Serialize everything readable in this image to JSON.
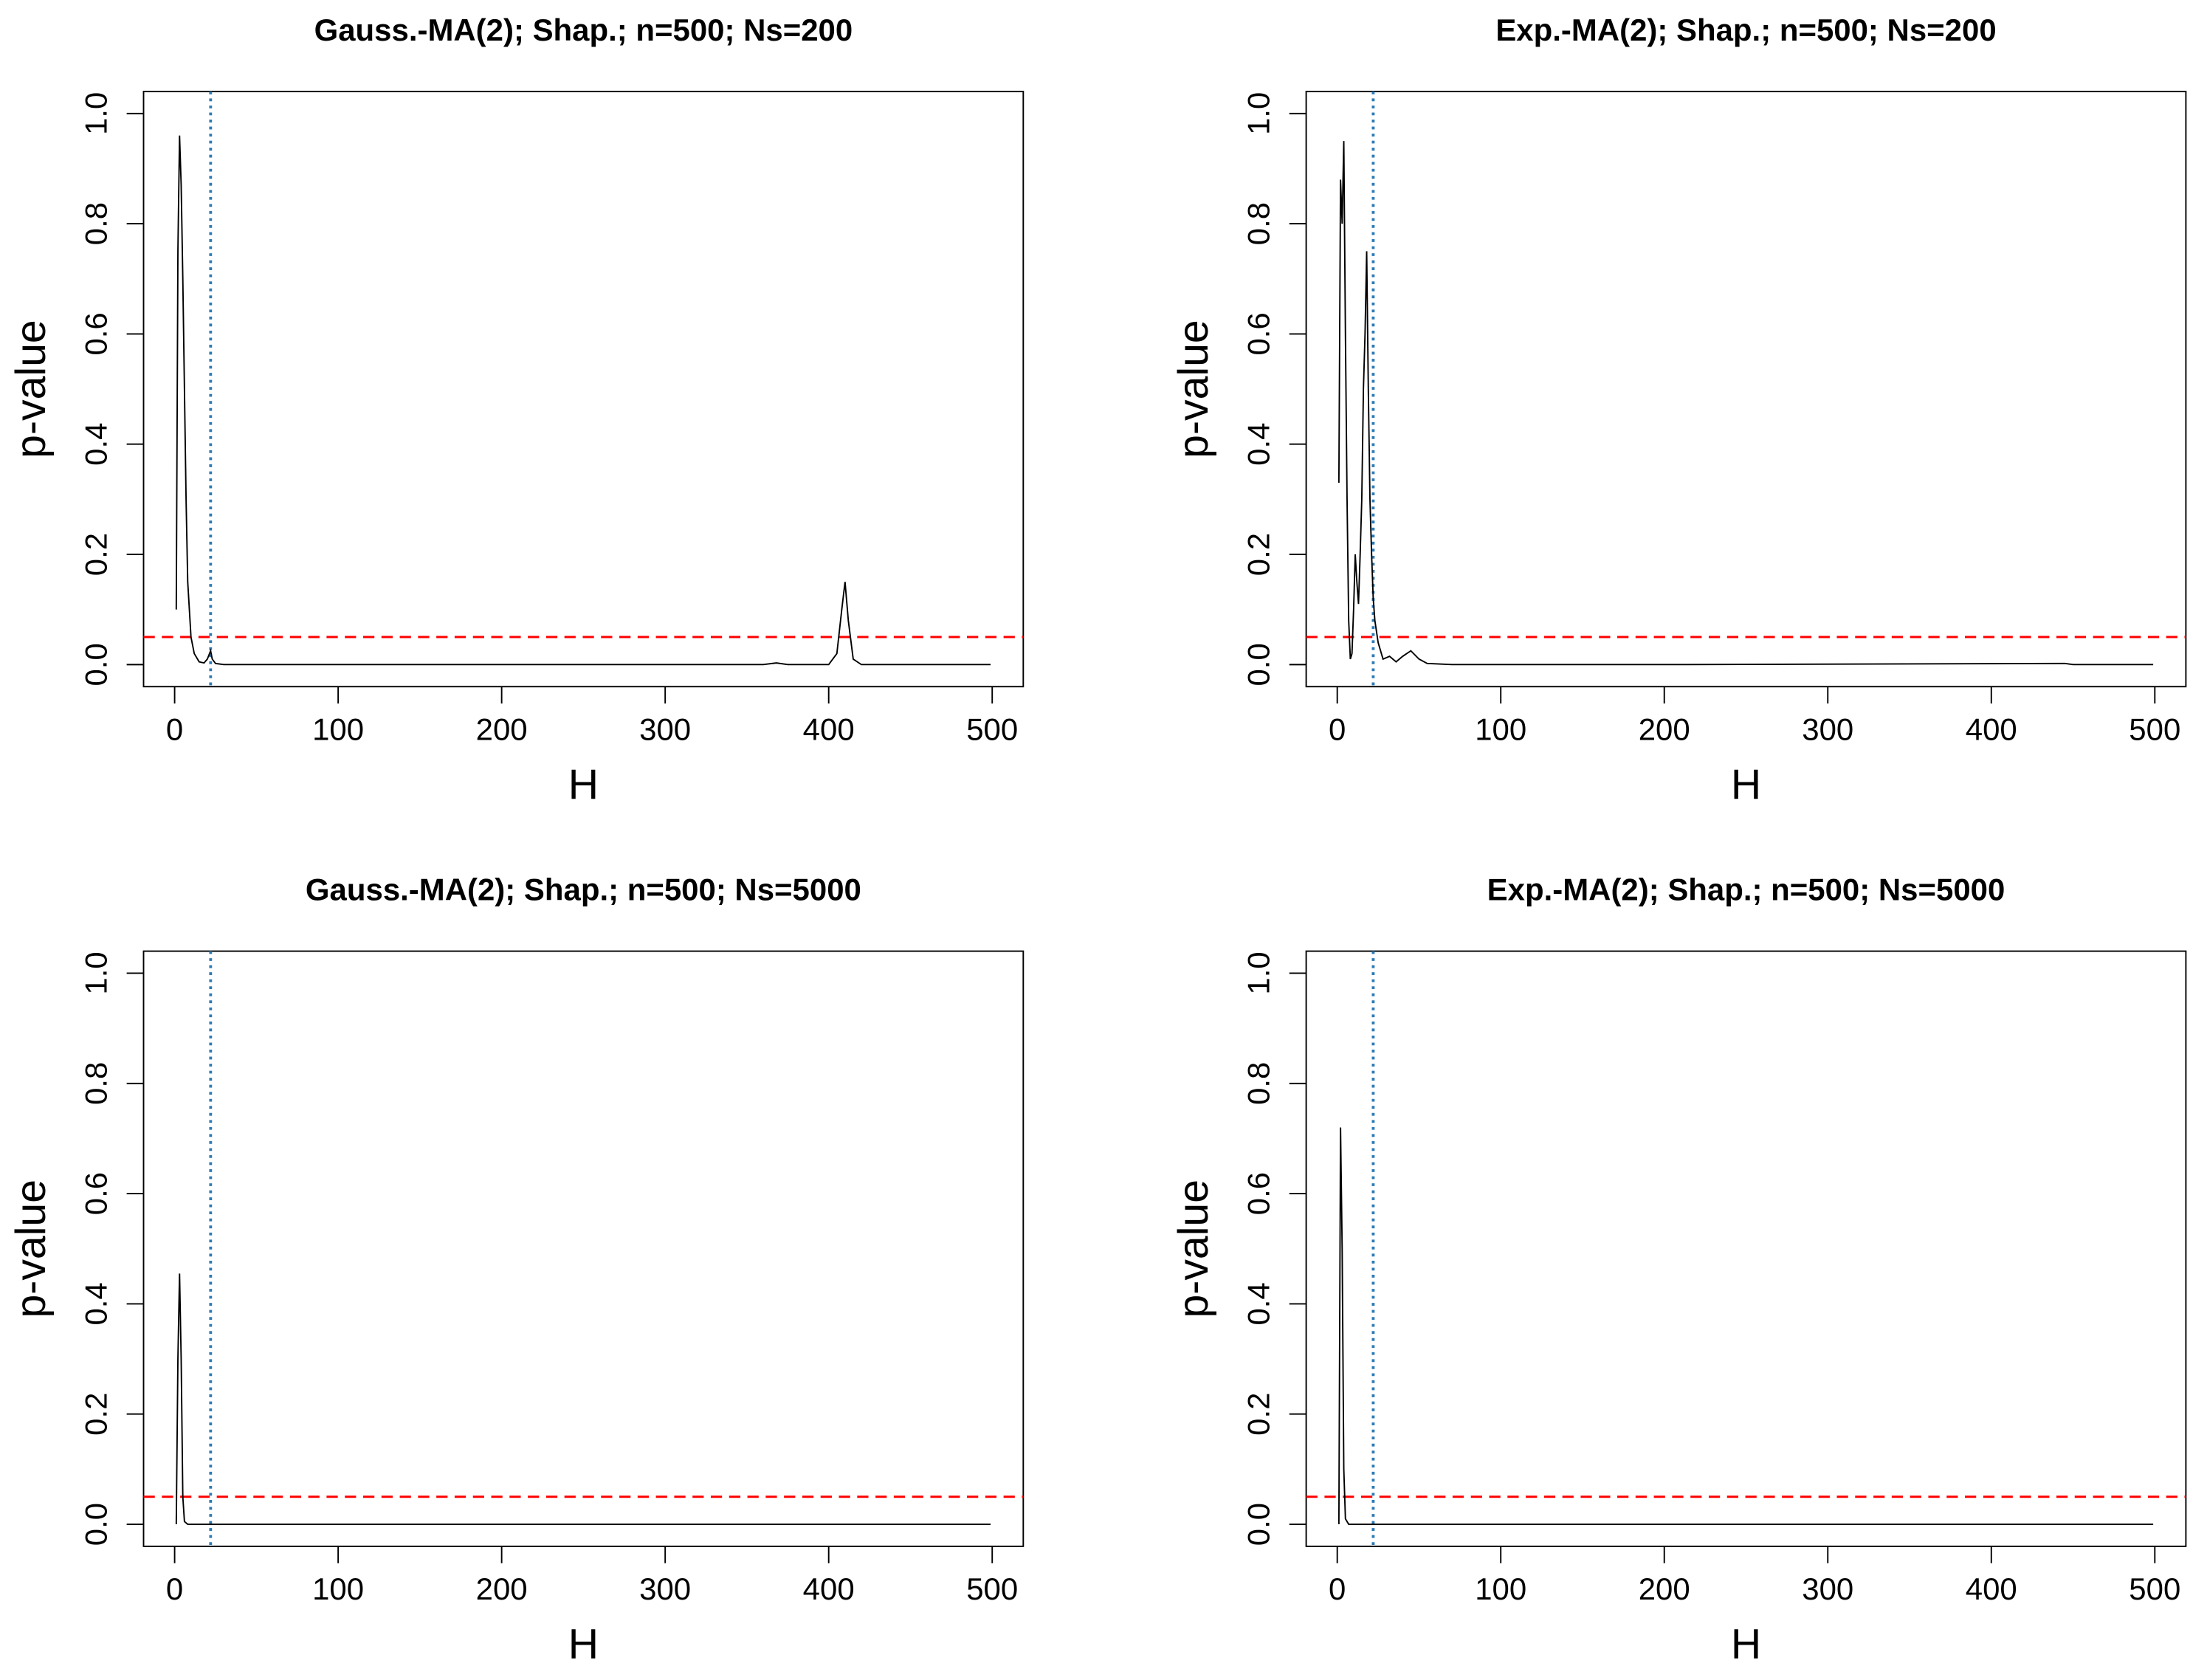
{
  "chart_data": [
    {
      "type": "line",
      "title": "Gauss.-MA(2);  Shap.;  n=500;  Ns=200",
      "xlabel": "H",
      "ylabel": "p-value",
      "x": [
        1,
        2,
        3,
        4,
        5,
        6,
        7,
        8,
        10,
        12,
        15,
        18,
        20,
        22,
        23,
        25,
        30,
        50,
        100,
        200,
        300,
        360,
        368,
        375,
        400,
        405,
        408,
        410,
        412,
        415,
        420,
        450,
        499
      ],
      "values": [
        0.1,
        0.75,
        0.96,
        0.87,
        0.7,
        0.5,
        0.3,
        0.15,
        0.05,
        0.02,
        0.005,
        0.003,
        0.01,
        0.025,
        0.01,
        0.002,
        0,
        0,
        0,
        0,
        0,
        0,
        0.003,
        0,
        0,
        0.02,
        0.1,
        0.15,
        0.08,
        0.01,
        0,
        0,
        0
      ],
      "color": "#000000",
      "hline": 0.05,
      "hline_color": "#ff0000",
      "vline": 22,
      "vline_color": "#2c7bb6",
      "xlim": [
        -19,
        519
      ],
      "ylim": [
        -0.04,
        1.04
      ],
      "xticks": [
        0,
        100,
        200,
        300,
        400,
        500
      ],
      "yticks": [
        {
          "value": 0,
          "label": "0.0"
        },
        0.2,
        0.4,
        0.6,
        0.8,
        {
          "value": 1,
          "label": "1.0"
        }
      ]
    },
    {
      "type": "line",
      "title": "Exp.-MA(2);  Shap.;  n=500;  Ns=200",
      "xlabel": "H",
      "ylabel": "p-value",
      "x": [
        1,
        2,
        3,
        4,
        5,
        6,
        7,
        8,
        9,
        10,
        11,
        12,
        13,
        14,
        15,
        16,
        17,
        18,
        19,
        20,
        21,
        22,
        23,
        25,
        28,
        32,
        36,
        40,
        45,
        50,
        55,
        70,
        200,
        445,
        450,
        499
      ],
      "values": [
        0.33,
        0.88,
        0.8,
        0.95,
        0.6,
        0.3,
        0.08,
        0.01,
        0.02,
        0.1,
        0.2,
        0.15,
        0.11,
        0.2,
        0.3,
        0.5,
        0.6,
        0.75,
        0.5,
        0.3,
        0.2,
        0.12,
        0.08,
        0.04,
        0.01,
        0.015,
        0.005,
        0.015,
        0.025,
        0.01,
        0.002,
        0,
        0,
        0.002,
        0,
        0
      ],
      "color": "#000000",
      "hline": 0.05,
      "hline_color": "#ff0000",
      "vline": 22,
      "vline_color": "#2c7bb6",
      "xlim": [
        -19,
        519
      ],
      "ylim": [
        -0.04,
        1.04
      ],
      "xticks": [
        0,
        100,
        200,
        300,
        400,
        500
      ],
      "yticks": [
        {
          "value": 0,
          "label": "0.0"
        },
        0.2,
        0.4,
        0.6,
        0.8,
        {
          "value": 1,
          "label": "1.0"
        }
      ]
    },
    {
      "type": "line",
      "title": "Gauss.-MA(2);  Shap.;  n=500;  Ns=5000",
      "xlabel": "H",
      "ylabel": "p-value",
      "x": [
        1,
        2,
        3,
        4,
        5,
        6,
        8,
        499
      ],
      "values": [
        0,
        0.3,
        0.455,
        0.3,
        0.05,
        0.005,
        0,
        0
      ],
      "color": "#000000",
      "hline": 0.05,
      "hline_color": "#ff0000",
      "vline": 22,
      "vline_color": "#2c7bb6",
      "xlim": [
        -19,
        519
      ],
      "ylim": [
        -0.04,
        1.04
      ],
      "xticks": [
        0,
        100,
        200,
        300,
        400,
        500
      ],
      "yticks": [
        {
          "value": 0,
          "label": "0.0"
        },
        0.2,
        0.4,
        0.6,
        0.8,
        {
          "value": 1,
          "label": "1.0"
        }
      ]
    },
    {
      "type": "line",
      "title": "Exp.-MA(2);  Shap.;  n=500;  Ns=5000",
      "xlabel": "H",
      "ylabel": "p-value",
      "x": [
        1,
        2,
        3,
        4,
        5,
        7,
        499
      ],
      "values": [
        0,
        0.72,
        0.5,
        0.1,
        0.01,
        0,
        0
      ],
      "color": "#000000",
      "hline": 0.05,
      "hline_color": "#ff0000",
      "vline": 22,
      "vline_color": "#2c7bb6",
      "xlim": [
        -19,
        519
      ],
      "ylim": [
        -0.04,
        1.04
      ],
      "xticks": [
        0,
        100,
        200,
        300,
        400,
        500
      ],
      "yticks": [
        {
          "value": 0,
          "label": "0.0"
        },
        0.2,
        0.4,
        0.6,
        0.8,
        {
          "value": 1,
          "label": "1.0"
        }
      ]
    }
  ]
}
